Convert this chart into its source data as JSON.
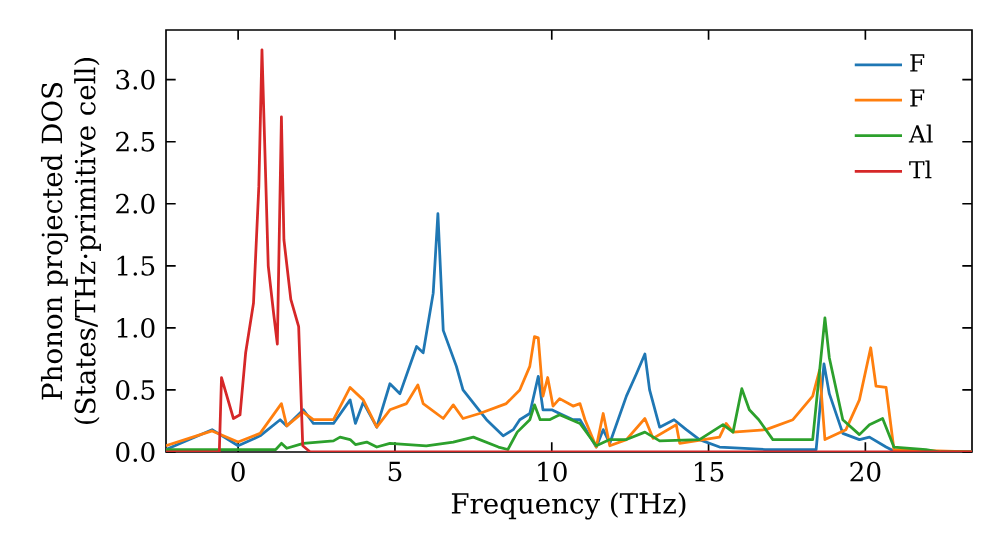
{
  "chart_data": {
    "type": "line",
    "xlabel": "Frequency (THz)",
    "ylabel": "Phonon projected DOS\n(States/THz·primitive cell)",
    "xlim": [
      -2.3,
      23.4
    ],
    "ylim": [
      0,
      3.4
    ],
    "xticks": [
      0,
      5,
      10,
      15,
      20
    ],
    "yticks": [
      {
        "value": 0,
        "label": "0.0"
      },
      {
        "value": 0.5,
        "label": "0.5"
      },
      {
        "value": 1,
        "label": "1.0"
      },
      {
        "value": 1.5,
        "label": "1.5"
      },
      {
        "value": 2,
        "label": "2.0"
      },
      {
        "value": 2.5,
        "label": "2.5"
      },
      {
        "value": 3,
        "label": "3.0"
      }
    ],
    "legend": "top right",
    "series": [
      {
        "name": "F",
        "color": "#1f77b4",
        "x": [
          -2.3,
          -0.83,
          0.0,
          0.7,
          1.34,
          1.55,
          2.08,
          2.4,
          3.04,
          3.57,
          3.74,
          3.99,
          4.42,
          4.84,
          5.16,
          5.69,
          5.9,
          6.22,
          6.37,
          6.54,
          6.96,
          7.17,
          7.92,
          8.45,
          8.77,
          8.98,
          9.3,
          9.57,
          9.72,
          10.0,
          10.25,
          10.68,
          10.9,
          11.42,
          11.64,
          11.85,
          12.38,
          12.7,
          12.97,
          13.12,
          13.44,
          13.9,
          14.29,
          14.71,
          15.35,
          16.8,
          18.43,
          18.68,
          18.85,
          19.28,
          19.81,
          20.13,
          20.66,
          20.97,
          23.4
        ],
        "values": [
          0.02,
          0.18,
          0.05,
          0.13,
          0.26,
          0.21,
          0.34,
          0.23,
          0.23,
          0.42,
          0.23,
          0.4,
          0.2,
          0.55,
          0.47,
          0.85,
          0.8,
          1.28,
          1.92,
          0.98,
          0.69,
          0.5,
          0.26,
          0.13,
          0.18,
          0.26,
          0.31,
          0.61,
          0.34,
          0.34,
          0.31,
          0.26,
          0.26,
          0.04,
          0.18,
          0.07,
          0.45,
          0.63,
          0.79,
          0.5,
          0.2,
          0.26,
          0.18,
          0.1,
          0.04,
          0.02,
          0.02,
          0.71,
          0.47,
          0.15,
          0.1,
          0.12,
          0.04,
          0.0,
          0.0
        ]
      },
      {
        "name": "F",
        "color": "#ff7f0e",
        "x": [
          -2.3,
          -0.83,
          0.0,
          0.7,
          1.38,
          1.55,
          2.08,
          2.4,
          3.04,
          3.57,
          3.99,
          4.42,
          4.84,
          5.37,
          5.73,
          5.9,
          6.54,
          6.86,
          7.17,
          7.7,
          8.55,
          8.98,
          9.3,
          9.45,
          9.57,
          9.72,
          9.87,
          10.04,
          10.25,
          10.68,
          10.9,
          11.06,
          11.42,
          11.64,
          11.85,
          12.38,
          12.97,
          13.23,
          13.97,
          14.08,
          15.35,
          15.56,
          15.78,
          16.83,
          17.69,
          18.32,
          18.54,
          18.71,
          19.38,
          19.81,
          20.17,
          20.34,
          20.66,
          20.91,
          23.4
        ],
        "values": [
          0.05,
          0.17,
          0.08,
          0.15,
          0.39,
          0.21,
          0.32,
          0.26,
          0.26,
          0.52,
          0.42,
          0.2,
          0.34,
          0.39,
          0.54,
          0.39,
          0.27,
          0.38,
          0.27,
          0.31,
          0.39,
          0.5,
          0.69,
          0.93,
          0.92,
          0.45,
          0.6,
          0.37,
          0.43,
          0.37,
          0.39,
          0.26,
          0.04,
          0.31,
          0.05,
          0.1,
          0.27,
          0.11,
          0.22,
          0.07,
          0.12,
          0.23,
          0.16,
          0.18,
          0.26,
          0.45,
          0.66,
          0.1,
          0.18,
          0.42,
          0.84,
          0.53,
          0.52,
          0.02,
          0.0
        ]
      },
      {
        "name": "Al",
        "color": "#2ca02c",
        "x": [
          -2.3,
          1.2,
          1.38,
          1.55,
          2.08,
          3.04,
          3.25,
          3.57,
          3.74,
          4.1,
          4.42,
          4.84,
          6.0,
          6.86,
          7.5,
          8.3,
          8.6,
          8.9,
          9.3,
          9.45,
          9.63,
          9.93,
          10.25,
          10.9,
          11.42,
          11.85,
          12.38,
          12.97,
          13.44,
          14.71,
          15.46,
          15.78,
          16.06,
          16.3,
          16.6,
          17.05,
          18.32,
          18.71,
          18.85,
          19.28,
          19.81,
          20.13,
          20.55,
          20.91,
          21.93,
          22.4,
          23.4
        ],
        "values": [
          0.02,
          0.02,
          0.07,
          0.03,
          0.07,
          0.09,
          0.12,
          0.1,
          0.06,
          0.08,
          0.04,
          0.07,
          0.05,
          0.08,
          0.12,
          0.04,
          0.02,
          0.16,
          0.26,
          0.38,
          0.26,
          0.26,
          0.3,
          0.23,
          0.05,
          0.1,
          0.1,
          0.16,
          0.09,
          0.1,
          0.22,
          0.16,
          0.51,
          0.34,
          0.26,
          0.1,
          0.1,
          1.08,
          0.76,
          0.26,
          0.14,
          0.22,
          0.27,
          0.04,
          0.02,
          0.0,
          0.0
        ]
      },
      {
        "name": "Tl",
        "color": "#d62728",
        "x": [
          -2.3,
          -0.6,
          -0.53,
          -0.15,
          0.06,
          0.24,
          0.49,
          0.66,
          0.76,
          0.96,
          1.13,
          1.25,
          1.38,
          1.46,
          1.68,
          1.93,
          2.06,
          2.3,
          23.4
        ],
        "values": [
          0.0,
          0.0,
          0.6,
          0.27,
          0.3,
          0.8,
          1.2,
          2.14,
          3.24,
          1.5,
          1.12,
          0.87,
          2.7,
          1.71,
          1.23,
          1.01,
          0.05,
          0.0,
          0.0
        ]
      }
    ]
  }
}
